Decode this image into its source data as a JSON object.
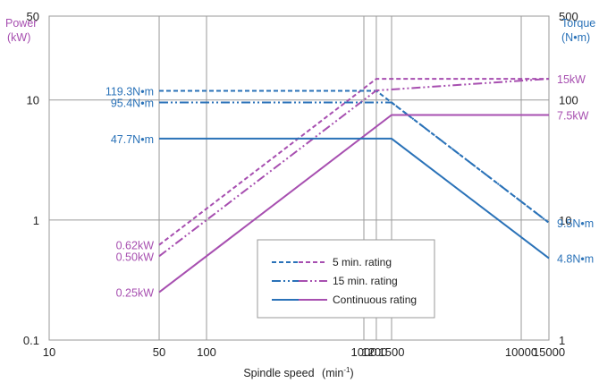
{
  "colors": {
    "power": "#a74fb0",
    "torque": "#2a72b8",
    "grid": "#9a9a9a",
    "text": "#222222"
  },
  "chart_data": {
    "type": "line",
    "xlabel": "Spindle speed",
    "xunit_prefix": "(min",
    "xunit_sup": "-1",
    "xunit_suffix": ")",
    "x_scale": "log",
    "xlim": [
      10,
      15000
    ],
    "x_ticks": [
      {
        "v": 10,
        "label": "10"
      },
      {
        "v": 50,
        "label": "50"
      },
      {
        "v": 100,
        "label": "100"
      },
      {
        "v": 1000,
        "label": "1000"
      },
      {
        "v": 1200,
        "label": "1200"
      },
      {
        "v": 1500,
        "label": "1500"
      },
      {
        "v": 10000,
        "label": "10000"
      },
      {
        "v": 15000,
        "label": "15000"
      }
    ],
    "left_axis": {
      "title_line1": "Power",
      "title_line2": "(kW)",
      "scale": "log",
      "ylim": [
        0.1,
        50
      ],
      "ticks": [
        {
          "v": 0.1,
          "label": "0.1"
        },
        {
          "v": 1,
          "label": "1"
        },
        {
          "v": 10,
          "label": "10"
        },
        {
          "v": 50,
          "label": "50"
        }
      ]
    },
    "right_axis": {
      "title_line1": "Torque",
      "title_line2": "(N•m)",
      "scale": "log",
      "ylim": [
        1,
        500
      ],
      "ticks": [
        {
          "v": 1,
          "label": "1"
        },
        {
          "v": 10,
          "label": "10"
        },
        {
          "v": 100,
          "label": "100"
        },
        {
          "v": 500,
          "label": "500"
        }
      ]
    },
    "series": [
      {
        "name": "5 min. rating",
        "quantity": "power",
        "axis": "left",
        "dash": "5,3",
        "x": [
          50,
          1200,
          15000
        ],
        "y": [
          0.62,
          15,
          15
        ]
      },
      {
        "name": "5 min. rating",
        "quantity": "torque",
        "axis": "right",
        "dash": "5,3",
        "x": [
          50,
          1200,
          15000
        ],
        "y": [
          119.3,
          119.3,
          9.5
        ]
      },
      {
        "name": "15 min. rating",
        "quantity": "power",
        "axis": "left",
        "dash": "10,3,2,3,2,3",
        "x": [
          50,
          1200,
          15000
        ],
        "y": [
          0.5,
          12,
          15
        ]
      },
      {
        "name": "15 min. rating",
        "quantity": "torque",
        "axis": "right",
        "dash": "10,3,2,3,2,3",
        "x": [
          50,
          1500,
          15000
        ],
        "y": [
          95.4,
          95.4,
          9.5
        ]
      },
      {
        "name": "Continuous rating",
        "quantity": "power",
        "axis": "left",
        "dash": "",
        "x": [
          50,
          1500,
          15000
        ],
        "y": [
          0.25,
          7.5,
          7.5
        ]
      },
      {
        "name": "Continuous rating",
        "quantity": "torque",
        "axis": "right",
        "dash": "",
        "x": [
          50,
          1500,
          15000
        ],
        "y": [
          47.7,
          47.7,
          4.8
        ]
      }
    ],
    "annotations": [
      {
        "text": "119.3N•m",
        "side": "left",
        "axis": "right",
        "value": 119.3,
        "color": "torque"
      },
      {
        "text": "95.4N•m",
        "side": "left",
        "axis": "right",
        "value": 95.4,
        "color": "torque"
      },
      {
        "text": "47.7N•m",
        "side": "left",
        "axis": "right",
        "value": 47.7,
        "color": "torque"
      },
      {
        "text": "0.62kW",
        "side": "left",
        "axis": "left",
        "value": 0.62,
        "color": "power"
      },
      {
        "text": "0.50kW",
        "side": "left",
        "axis": "left",
        "value": 0.5,
        "color": "power"
      },
      {
        "text": "0.25kW",
        "side": "left",
        "axis": "left",
        "value": 0.25,
        "color": "power"
      },
      {
        "text": "15kW",
        "side": "right",
        "axis": "left",
        "value": 15,
        "color": "power"
      },
      {
        "text": "7.5kW",
        "side": "right",
        "axis": "left",
        "value": 7.5,
        "color": "power"
      },
      {
        "text": "9.5N•m",
        "side": "right",
        "axis": "right",
        "value": 9.5,
        "color": "torque"
      },
      {
        "text": "4.8N•m",
        "side": "right",
        "axis": "right",
        "value": 4.8,
        "color": "torque"
      }
    ],
    "legend": {
      "placement": "lower-center",
      "items": [
        {
          "label": "5 min. rating",
          "dash": "5,3"
        },
        {
          "label": "15 min. rating",
          "dash": "10,3,2,3,2,3"
        },
        {
          "label": "Continuous rating",
          "dash": ""
        }
      ]
    }
  }
}
